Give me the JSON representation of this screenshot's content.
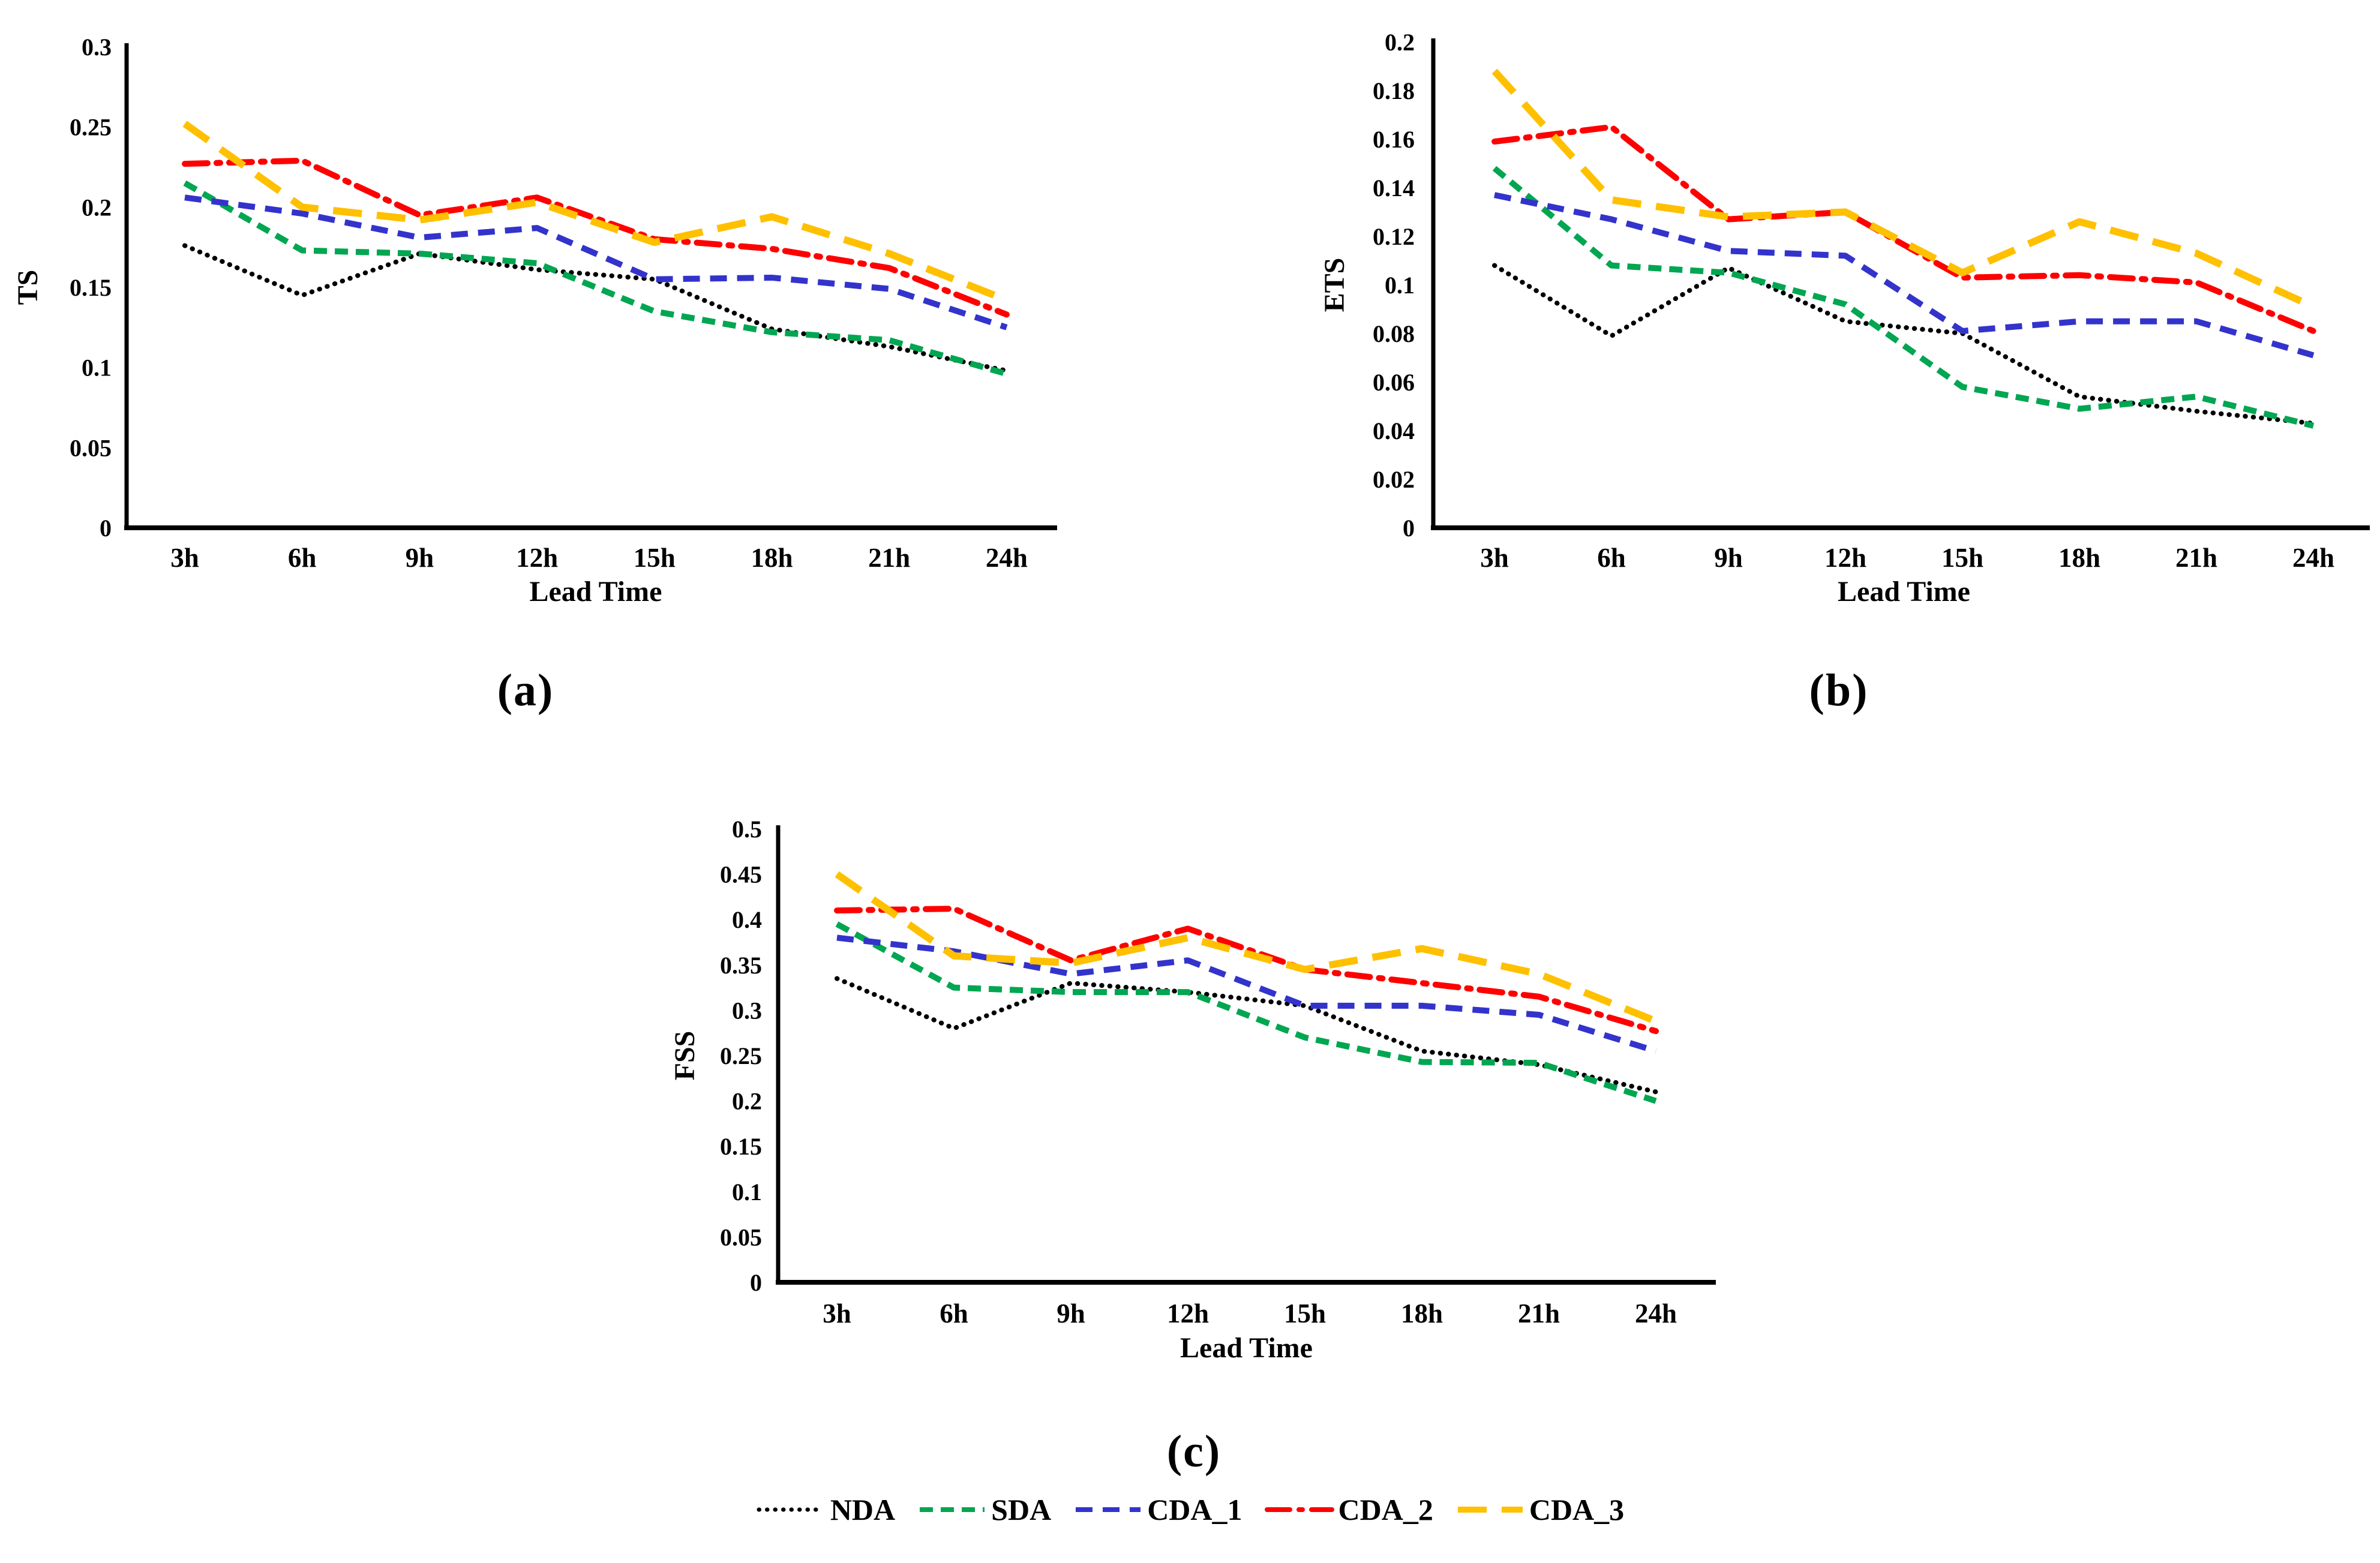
{
  "figure_type": "multi-panel-line-figure",
  "series_styles": {
    "NDA": {
      "color": "#000000",
      "dash": "0.5 13",
      "width": 8,
      "cap": "round"
    },
    "SDA": {
      "color": "#00A651",
      "dash": "22 13",
      "width": 10,
      "cap": "butt"
    },
    "CDA_1": {
      "color": "#3333CC",
      "dash": "28 17",
      "width": 10,
      "cap": "butt"
    },
    "CDA_2": {
      "color": "#FF0000",
      "dash": "38 15 6 15",
      "width": 10,
      "cap": "round"
    },
    "CDA_3": {
      "color": "#FFC000",
      "dash": "48 25",
      "width": 12,
      "cap": "butt"
    }
  },
  "legend": {
    "items": [
      "NDA",
      "SDA",
      "CDA_1",
      "CDA_2",
      "CDA_3"
    ]
  },
  "chart_data": [
    {
      "id": "a",
      "type": "line",
      "title": "",
      "caption": "(a)",
      "ylabel": "TS",
      "xlabel": "Lead Time",
      "categories": [
        "3h",
        "6h",
        "9h",
        "12h",
        "15h",
        "18h",
        "21h",
        "24h"
      ],
      "ylim": [
        0,
        0.3
      ],
      "yticks": [
        "0",
        "0.05",
        "0.1",
        "0.15",
        "0.2",
        "0.25",
        "0.3"
      ],
      "grid": false,
      "legend_position": "shared-bottom",
      "series": [
        {
          "name": "NDA",
          "values": [
            0.176,
            0.145,
            0.171,
            0.161,
            0.155,
            0.124,
            0.113,
            0.098
          ]
        },
        {
          "name": "SDA",
          "values": [
            0.215,
            0.173,
            0.171,
            0.165,
            0.135,
            0.122,
            0.117,
            0.096
          ]
        },
        {
          "name": "CDA_1",
          "values": [
            0.206,
            0.196,
            0.181,
            0.187,
            0.155,
            0.156,
            0.149,
            0.125
          ]
        },
        {
          "name": "CDA_2",
          "values": [
            0.227,
            0.229,
            0.195,
            0.206,
            0.18,
            0.174,
            0.162,
            0.133
          ]
        },
        {
          "name": "CDA_3",
          "values": [
            0.252,
            0.2,
            0.192,
            0.203,
            0.178,
            0.194,
            0.171,
            0.142
          ]
        }
      ]
    },
    {
      "id": "b",
      "type": "line",
      "title": "",
      "caption": "(b)",
      "ylabel": "ETS",
      "xlabel": "Lead Time",
      "categories": [
        "3h",
        "6h",
        "9h",
        "12h",
        "15h",
        "18h",
        "21h",
        "24h"
      ],
      "ylim": [
        0,
        0.2
      ],
      "yticks": [
        "0",
        "0.02",
        "0.04",
        "0.06",
        "0.08",
        "0.1",
        "0.12",
        "0.14",
        "0.16",
        "0.18",
        "0.2"
      ],
      "grid": false,
      "legend_position": "shared-bottom",
      "series": [
        {
          "name": "NDA",
          "values": [
            0.108,
            0.079,
            0.107,
            0.085,
            0.08,
            0.054,
            0.048,
            0.043
          ]
        },
        {
          "name": "SDA",
          "values": [
            0.148,
            0.108,
            0.105,
            0.092,
            0.058,
            0.049,
            0.054,
            0.042
          ]
        },
        {
          "name": "CDA_1",
          "values": [
            0.137,
            0.127,
            0.114,
            0.112,
            0.081,
            0.085,
            0.085,
            0.071
          ]
        },
        {
          "name": "CDA_2",
          "values": [
            0.159,
            0.165,
            0.127,
            0.13,
            0.103,
            0.104,
            0.101,
            0.081
          ]
        },
        {
          "name": "CDA_3",
          "values": [
            0.188,
            0.135,
            0.128,
            0.13,
            0.105,
            0.126,
            0.113,
            0.091
          ]
        }
      ]
    },
    {
      "id": "c",
      "type": "line",
      "title": "",
      "caption": "(c)",
      "ylabel": "FSS",
      "xlabel": "Lead Time",
      "categories": [
        "3h",
        "6h",
        "9h",
        "12h",
        "15h",
        "18h",
        "21h",
        "24h"
      ],
      "ylim": [
        0,
        0.5
      ],
      "yticks": [
        "0",
        "0.05",
        "0.1",
        "0.15",
        "0.2",
        "0.25",
        "0.3",
        "0.35",
        "0.4",
        "0.45",
        "0.5"
      ],
      "grid": false,
      "legend_position": "shared-bottom",
      "series": [
        {
          "name": "NDA",
          "values": [
            0.335,
            0.28,
            0.33,
            0.32,
            0.305,
            0.255,
            0.24,
            0.21
          ]
        },
        {
          "name": "SDA",
          "values": [
            0.395,
            0.325,
            0.32,
            0.32,
            0.27,
            0.243,
            0.242,
            0.2
          ]
        },
        {
          "name": "CDA_1",
          "values": [
            0.38,
            0.365,
            0.34,
            0.355,
            0.305,
            0.305,
            0.295,
            0.255
          ]
        },
        {
          "name": "CDA_2",
          "values": [
            0.41,
            0.412,
            0.355,
            0.39,
            0.345,
            0.33,
            0.315,
            0.277
          ]
        },
        {
          "name": "CDA_3",
          "values": [
            0.45,
            0.36,
            0.352,
            0.38,
            0.345,
            0.368,
            0.34,
            0.288
          ]
        }
      ]
    }
  ]
}
